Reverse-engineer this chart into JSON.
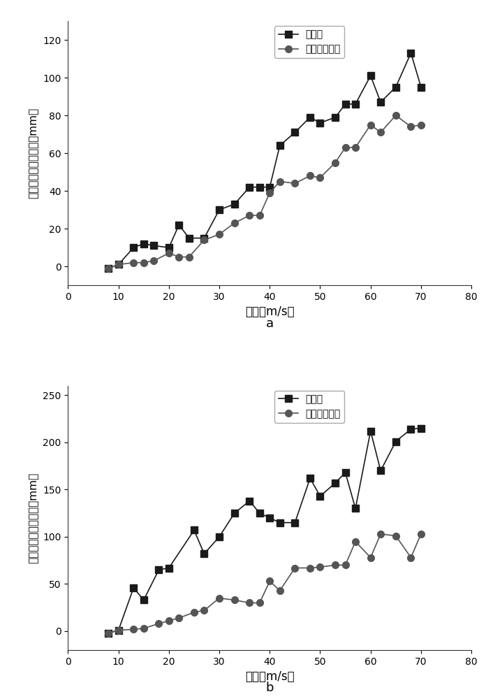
{
  "plot_a": {
    "ylabel": "主梁横向位移根方差（mm）",
    "xlabel": "风速（m/s）",
    "label_a": "a",
    "xlim": [
      0,
      80
    ],
    "ylim": [
      -10,
      130
    ],
    "yticks": [
      0,
      20,
      40,
      60,
      80,
      100,
      120
    ],
    "xticks": [
      0,
      10,
      20,
      30,
      40,
      50,
      60,
      70,
      80
    ],
    "series1": {
      "label": "原结构",
      "color": "#1a1a1a",
      "marker": "s",
      "x": [
        8,
        10,
        13,
        15,
        17,
        20,
        22,
        24,
        27,
        30,
        33,
        36,
        38,
        40,
        42,
        45,
        48,
        50,
        53,
        55,
        57,
        60,
        62,
        65,
        68,
        70
      ],
      "y": [
        -1,
        1,
        10,
        12,
        11,
        10,
        22,
        15,
        15,
        30,
        33,
        42,
        42,
        42,
        64,
        71,
        79,
        76,
        79,
        86,
        86,
        101,
        87,
        95,
        113,
        95
      ]
    },
    "series2": {
      "label": "施加抗风措施",
      "color": "#555555",
      "marker": "o",
      "x": [
        8,
        10,
        13,
        15,
        17,
        20,
        22,
        24,
        27,
        30,
        33,
        36,
        38,
        40,
        42,
        45,
        48,
        50,
        53,
        55,
        57,
        60,
        62,
        65,
        68,
        70
      ],
      "y": [
        -1,
        1,
        2,
        2,
        3,
        7,
        5,
        5,
        14,
        17,
        23,
        27,
        27,
        39,
        45,
        44,
        48,
        47,
        55,
        63,
        63,
        75,
        71,
        80,
        74,
        75
      ]
    }
  },
  "plot_b": {
    "ylabel": "主梁竖向位移根方差（mm）",
    "xlabel": "风速（m/s）",
    "label_b": "b",
    "xlim": [
      0,
      80
    ],
    "ylim": [
      -20,
      260
    ],
    "yticks": [
      0,
      50,
      100,
      150,
      200,
      250
    ],
    "xticks": [
      0,
      10,
      20,
      30,
      40,
      50,
      60,
      70,
      80
    ],
    "series1": {
      "label": "原结构",
      "color": "#1a1a1a",
      "marker": "s",
      "x": [
        8,
        10,
        13,
        15,
        18,
        20,
        25,
        27,
        30,
        33,
        36,
        38,
        40,
        42,
        45,
        48,
        50,
        53,
        55,
        57,
        60,
        62,
        65,
        68,
        70
      ],
      "y": [
        -2,
        1,
        46,
        33,
        65,
        67,
        107,
        82,
        100,
        125,
        138,
        125,
        120,
        115,
        115,
        162,
        143,
        157,
        168,
        130,
        212,
        170,
        201,
        214,
        215
      ]
    },
    "series2": {
      "label": "施加抗风措施",
      "color": "#555555",
      "marker": "o",
      "x": [
        8,
        10,
        13,
        15,
        18,
        20,
        22,
        25,
        27,
        30,
        33,
        36,
        38,
        40,
        42,
        45,
        48,
        50,
        53,
        55,
        57,
        60,
        62,
        65,
        68,
        70
      ],
      "y": [
        -2,
        1,
        2,
        3,
        8,
        11,
        14,
        20,
        22,
        35,
        33,
        30,
        30,
        53,
        43,
        67,
        67,
        68,
        70,
        70,
        95,
        78,
        103,
        101,
        78,
        103
      ]
    }
  },
  "background_color": "#ffffff",
  "line_width": 1.2,
  "marker_size": 7
}
